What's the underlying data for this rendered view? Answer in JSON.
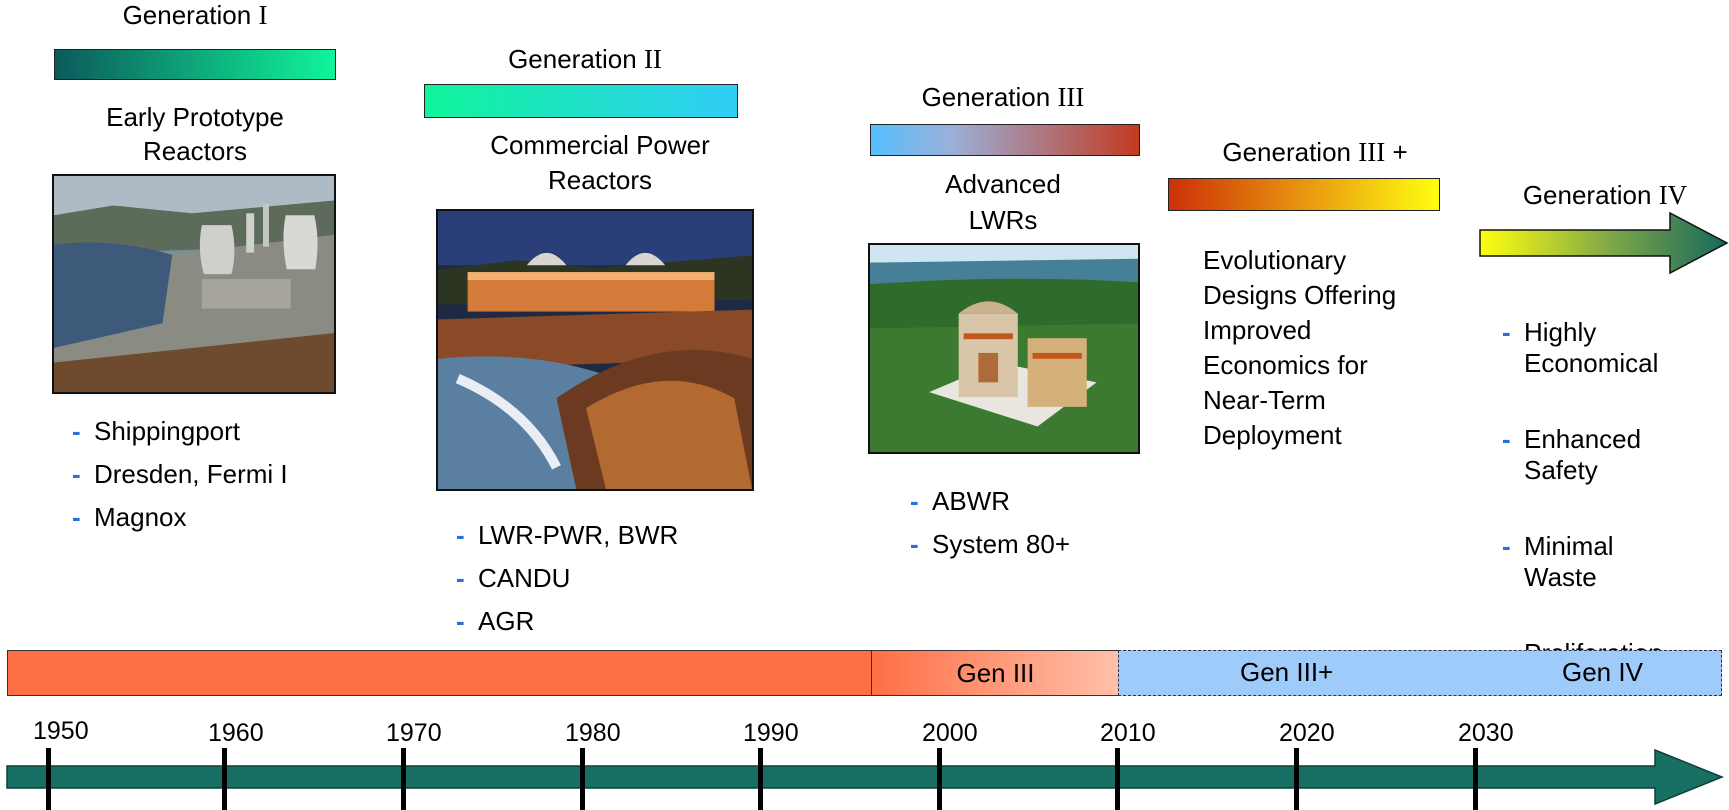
{
  "generations": [
    {
      "prefix": "Generation ",
      "numeral": "I",
      "suffix": "",
      "title_lines": [
        "Early Prototype",
        "Reactors"
      ],
      "examples": [
        "Shippingport",
        "Dresden, Fermi I",
        "Magnox"
      ]
    },
    {
      "prefix": "Generation ",
      "numeral": "II",
      "suffix": "",
      "title_lines": [
        "Commercial Power",
        "Reactors"
      ],
      "examples": [
        "LWR-PWR, BWR",
        "CANDU",
        "AGR"
      ]
    },
    {
      "prefix": "Generation ",
      "numeral": "III",
      "suffix": "",
      "title_lines": [
        "Advanced",
        "LWRs"
      ],
      "examples": [
        "ABWR",
        "System 80+"
      ]
    },
    {
      "prefix": "Generation ",
      "numeral": "III",
      "suffix": " +",
      "description_lines": [
        "Evolutionary",
        "Designs Offering",
        "Improved",
        "Economics for",
        "Near-Term",
        "Deployment"
      ]
    },
    {
      "prefix": "Generation ",
      "numeral": "IV",
      "suffix": "",
      "examples": [
        "Highly\nEconomical",
        "Enhanced\nSafety",
        "Minimal\nWaste",
        "Proliferation\nResistant"
      ]
    }
  ],
  "era_bar": {
    "gen3_label": "Gen III",
    "gen3plus_label": "Gen III+",
    "gen4_label": "Gen IV"
  },
  "timeline": {
    "years": [
      "1950",
      "1960",
      "1970",
      "1980",
      "1990",
      "2000",
      "2010",
      "2020",
      "2030"
    ]
  },
  "colors": {
    "timeline_arrow": "#186f64",
    "era_early": "#ff6f45",
    "era_future": "#9ecbfa"
  }
}
